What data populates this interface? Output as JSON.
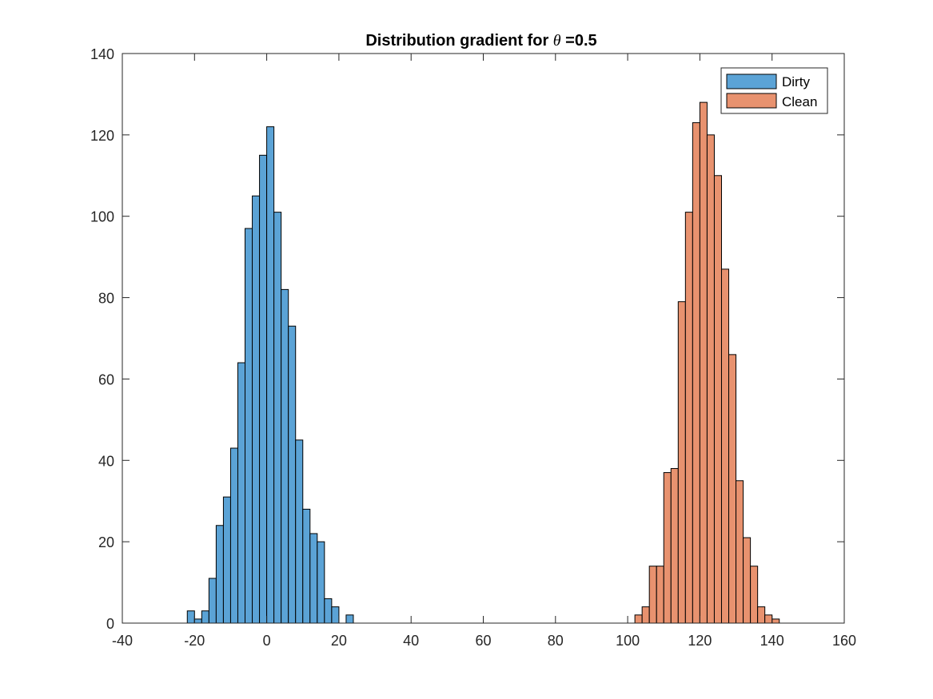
{
  "chart_data": {
    "type": "bar",
    "title_prefix": "Distribution gradient for ",
    "title_symbol": "θ",
    "title_suffix": " =0.5",
    "xlim": [
      -40,
      160
    ],
    "ylim": [
      0,
      140
    ],
    "xticks": [
      -40,
      -20,
      0,
      20,
      40,
      60,
      80,
      100,
      120,
      140,
      160
    ],
    "yticks": [
      0,
      20,
      40,
      60,
      80,
      100,
      120,
      140
    ],
    "grid": false,
    "legend_position": "top-right",
    "bin_width": 2,
    "series": [
      {
        "name": "Dirty",
        "color": "#5ba3d6",
        "bin_starts": [
          -22,
          -20,
          -18,
          -16,
          -14,
          -12,
          -10,
          -8,
          -6,
          -4,
          -2,
          0,
          2,
          4,
          6,
          8,
          10,
          12,
          14,
          16,
          18,
          20,
          22
        ],
        "values": [
          3,
          1,
          3,
          11,
          24,
          31,
          43,
          64,
          97,
          105,
          115,
          122,
          101,
          82,
          73,
          45,
          28,
          22,
          20,
          6,
          4,
          0,
          2
        ]
      },
      {
        "name": "Clean",
        "color": "#e8926f",
        "bin_starts": [
          102,
          104,
          106,
          108,
          110,
          112,
          114,
          116,
          118,
          120,
          122,
          124,
          126,
          128,
          130,
          132,
          134,
          136,
          138,
          140
        ],
        "values": [
          2,
          4,
          14,
          14,
          37,
          38,
          79,
          101,
          123,
          128,
          120,
          110,
          87,
          66,
          35,
          21,
          14,
          4,
          2,
          1
        ]
      }
    ]
  }
}
